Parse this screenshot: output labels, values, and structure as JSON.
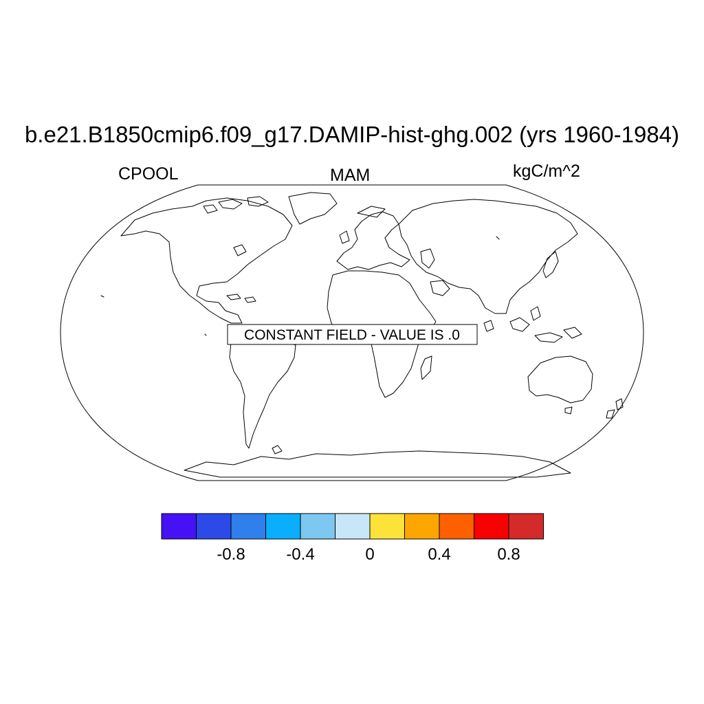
{
  "title": "b.e21.B1850cmip6.f09_g17.DAMIP-hist-ghg.002 (yrs 1960-1984)",
  "left_string": "CPOOL",
  "center_string": "MAM",
  "right_string": "kgC/m^2",
  "projection": "Robinson",
  "field_message": "CONSTANT FIELD - VALUE IS .0",
  "colorbar": {
    "colors": [
      "#4612f5",
      "#2c4ae8",
      "#2f7fec",
      "#0aaefc",
      "#7dc8f0",
      "#c7e7f8",
      "#fde23a",
      "#fea600",
      "#fe6000",
      "#f80000",
      "#d42a2a"
    ],
    "tick_labels": [
      "-0.8",
      "-0.4",
      "0",
      "0.4",
      "0.8"
    ]
  }
}
